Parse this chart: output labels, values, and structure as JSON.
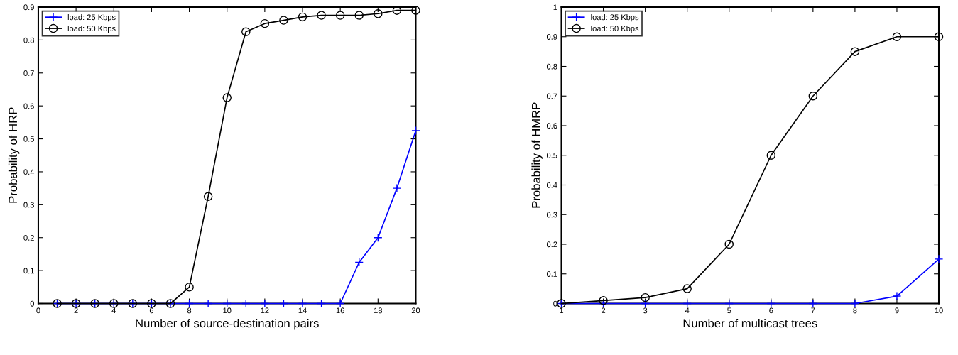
{
  "chart_data": [
    {
      "type": "line",
      "xlabel": "Number of source-destination pairs",
      "ylabel": "Probability of HRP",
      "x": [
        1,
        2,
        3,
        4,
        5,
        6,
        7,
        8,
        9,
        10,
        11,
        12,
        13,
        14,
        15,
        16,
        17,
        18,
        19,
        20
      ],
      "series": [
        {
          "name": "load: 25 Kbps",
          "color": "#0000ff",
          "marker": "cross",
          "values": [
            0,
            0,
            0,
            0,
            0,
            0,
            0,
            0,
            0,
            0,
            0,
            0,
            0,
            0,
            0,
            0,
            0.125,
            0.2,
            0.35,
            0.525
          ]
        },
        {
          "name": "load: 50 Kbps",
          "color": "#000000",
          "marker": "circle",
          "values": [
            0,
            0,
            0,
            0,
            0,
            0,
            0,
            0.05,
            0.325,
            0.625,
            0.825,
            0.85,
            0.86,
            0.87,
            0.875,
            0.875,
            0.875,
            0.88,
            0.89,
            0.89
          ]
        }
      ],
      "xlim": [
        0,
        20
      ],
      "xticks": [
        0,
        2,
        4,
        6,
        8,
        10,
        12,
        14,
        16,
        18,
        20
      ],
      "ylim": [
        0,
        0.9
      ],
      "yticks": [
        0,
        0.1,
        0.2,
        0.3,
        0.4,
        0.5,
        0.6,
        0.7,
        0.8,
        0.9
      ],
      "legend": "top left",
      "grid": false,
      "line_style": "solid"
    },
    {
      "type": "line",
      "xlabel": "Number of multicast trees",
      "ylabel": "Probability of HMRP",
      "x": [
        1,
        2,
        3,
        4,
        5,
        6,
        7,
        8,
        9,
        10
      ],
      "series": [
        {
          "name": "load: 25 Kbps",
          "color": "#0000ff",
          "marker": "cross",
          "values": [
            0,
            0,
            0,
            0,
            0,
            0,
            0,
            0,
            0.025,
            0.15
          ]
        },
        {
          "name": "load: 50 Kbps",
          "color": "#000000",
          "marker": "circle",
          "values": [
            0,
            0.01,
            0.02,
            0.05,
            0.2,
            0.5,
            0.7,
            0.85,
            0.9,
            0.9
          ]
        }
      ],
      "xlim": [
        1,
        10
      ],
      "xticks": [
        1,
        2,
        3,
        4,
        5,
        6,
        7,
        8,
        9,
        10
      ],
      "ylim": [
        0,
        1
      ],
      "yticks": [
        0,
        0.1,
        0.2,
        0.3,
        0.4,
        0.5,
        0.6,
        0.7,
        0.8,
        0.9,
        1
      ],
      "legend": "top left",
      "grid": false,
      "line_style": "solid"
    }
  ]
}
